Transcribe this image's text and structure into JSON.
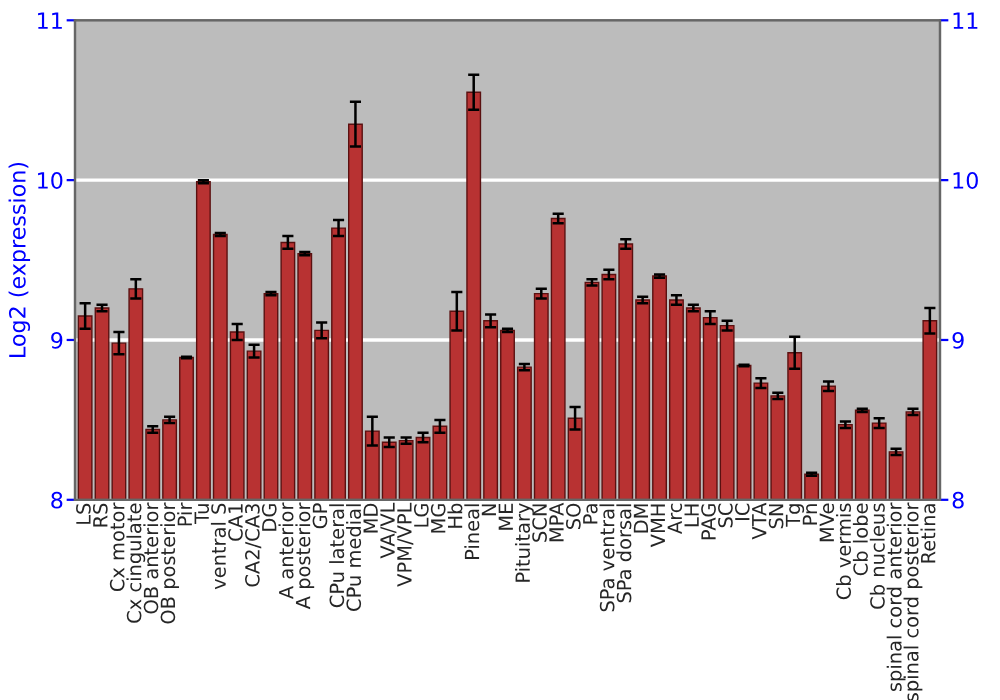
{
  "chart_data": {
    "type": "bar",
    "ylabel": "Log2 (expression)",
    "categories": [
      "LS",
      "RS",
      "Cx motor",
      "Cx cingulate",
      "OB anterior",
      "OB posterior",
      "Pir",
      "Tu",
      "ventral S",
      "CA1",
      "CA2/CA3",
      "DG",
      "A anterior",
      "A posterior",
      "GP",
      "CPu lateral",
      "CPu medial",
      "MD",
      "VA/VL",
      "VPM/VPL",
      "LG",
      "MG",
      "Hb",
      "Pineal",
      "N",
      "ME",
      "Pituitary",
      "SCN",
      "MPA",
      "SO",
      "Pa",
      "SPa ventral",
      "SPa dorsal",
      "DM",
      "VMH",
      "Arc",
      "LH",
      "PAG",
      "SC",
      "IC",
      "VTA",
      "SN",
      "Tg",
      "Pn",
      "MVe",
      "Cb vermis",
      "Cb lobe",
      "Cb nucleus",
      "spinal cord anterior",
      "spinal cord posterior",
      "Retina"
    ],
    "series": [
      {
        "color": "#b83232",
        "values": [
          9.15,
          9.2,
          8.98,
          9.32,
          8.44,
          8.5,
          8.89,
          9.99,
          9.66,
          9.05,
          8.93,
          9.29,
          9.61,
          9.54,
          9.06,
          9.7,
          10.35,
          8.43,
          8.36,
          8.37,
          8.39,
          8.46,
          9.18,
          10.55,
          9.12,
          9.06,
          8.83,
          9.29,
          9.76,
          8.51,
          9.36,
          9.41,
          9.6,
          9.25,
          9.4,
          9.25,
          9.2,
          9.14,
          9.09,
          8.84,
          8.73,
          8.65,
          8.92,
          8.16,
          8.71,
          8.47,
          8.56,
          8.48,
          8.3,
          8.55,
          9.12
        ],
        "errors": [
          0.08,
          0.02,
          0.07,
          0.06,
          0.02,
          0.02,
          0.005,
          0.01,
          0.01,
          0.05,
          0.04,
          0.01,
          0.04,
          0.01,
          0.05,
          0.05,
          0.14,
          0.09,
          0.03,
          0.02,
          0.03,
          0.04,
          0.12,
          0.11,
          0.04,
          0.01,
          0.02,
          0.03,
          0.03,
          0.07,
          0.02,
          0.03,
          0.03,
          0.02,
          0.01,
          0.03,
          0.02,
          0.04,
          0.03,
          0.005,
          0.03,
          0.02,
          0.1,
          0.01,
          0.03,
          0.02,
          0.01,
          0.03,
          0.02,
          0.02,
          0.08
        ]
      }
    ],
    "ylim": [
      8,
      11
    ],
    "yticks": [
      8,
      9,
      10,
      11
    ],
    "y2lim": [
      8,
      11
    ],
    "y2ticks": [
      8,
      9,
      10,
      11
    ],
    "grid": "y",
    "legend": false
  }
}
